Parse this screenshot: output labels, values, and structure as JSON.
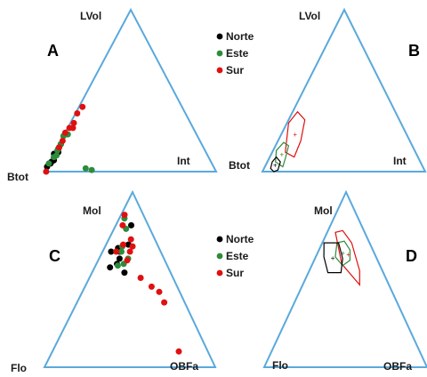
{
  "colors": {
    "triangle": "#5aa9dc",
    "norte": "#000000",
    "este": "#2e8b3a",
    "sur": "#e01010"
  },
  "panels": [
    {
      "id": "A",
      "label": "A",
      "vertices": {
        "top": "LVol",
        "left": "Btot",
        "right": "Int"
      },
      "legend": [
        "Norte",
        "Este",
        "Sur"
      ]
    },
    {
      "id": "B",
      "label": "B",
      "vertices": {
        "top": "LVol",
        "left": "Btot",
        "right": "Int"
      }
    },
    {
      "id": "C",
      "label": "C",
      "vertices": {
        "top": "Mol",
        "left": "Flo",
        "right": "OBFa"
      },
      "legend": [
        "Norte",
        "Este",
        "Sur"
      ]
    },
    {
      "id": "D",
      "label": "D",
      "vertices": {
        "top": "Mol",
        "left": "Flo",
        "right": "OBFa"
      }
    }
  ],
  "chart_data": {
    "type": "scatter",
    "diagram": "ternary",
    "series_names": [
      "Norte",
      "Este",
      "Sur"
    ],
    "panel_A": {
      "Norte": [
        [
          0.03,
          0.97
        ],
        [
          0.05,
          0.94
        ],
        [
          0.06,
          0.93
        ],
        [
          0.07,
          0.91
        ],
        [
          0.09,
          0.9
        ],
        [
          0.11,
          0.89
        ],
        [
          0.12,
          0.86
        ],
        [
          0.14,
          0.85
        ],
        [
          0.17,
          0.82
        ]
      ],
      "Este": [
        [
          0.05,
          0.95
        ],
        [
          0.09,
          0.9
        ],
        [
          0.1,
          0.88
        ],
        [
          0.13,
          0.86
        ],
        [
          0.15,
          0.84
        ],
        [
          0.17,
          0.82
        ],
        [
          0.22,
          0.78
        ],
        [
          0.23,
          0.75
        ],
        [
          0.02,
          0.75
        ],
        [
          0.01,
          0.72
        ]
      ],
      "Sur": [
        [
          0.0,
          0.99
        ],
        [
          0.15,
          0.84
        ],
        [
          0.19,
          0.8
        ],
        [
          0.24,
          0.76
        ],
        [
          0.27,
          0.72
        ],
        [
          0.27,
          0.7
        ],
        [
          0.3,
          0.68
        ],
        [
          0.36,
          0.63
        ],
        [
          0.4,
          0.58
        ]
      ]
    },
    "panel_C": {
      "Norte": [
        [
          0.81,
          0.1
        ],
        [
          0.7,
          0.17
        ],
        [
          0.68,
          0.24
        ],
        [
          0.66,
          0.24
        ],
        [
          0.66,
          0.29
        ],
        [
          0.62,
          0.26
        ],
        [
          0.59,
          0.29
        ],
        [
          0.57,
          0.34
        ],
        [
          0.54,
          0.27
        ]
      ],
      "Este": [
        [
          0.85,
          0.12
        ],
        [
          0.79,
          0.14
        ],
        [
          0.69,
          0.21
        ],
        [
          0.66,
          0.23
        ],
        [
          0.62,
          0.21
        ],
        [
          0.59,
          0.25
        ],
        [
          0.58,
          0.29
        ]
      ],
      "Sur": [
        [
          0.87,
          0.11
        ],
        [
          0.81,
          0.15
        ],
        [
          0.73,
          0.14
        ],
        [
          0.7,
          0.2
        ],
        [
          0.69,
          0.15
        ],
        [
          0.66,
          0.18
        ],
        [
          0.66,
          0.26
        ],
        [
          0.61,
          0.22
        ],
        [
          0.51,
          0.19
        ],
        [
          0.46,
          0.15
        ],
        [
          0.43,
          0.12
        ],
        [
          0.37,
          0.12
        ],
        [
          0.09,
          0.17
        ]
      ]
    },
    "panel_B_hexagons": {
      "Norte": [
        [
          0.06,
          0.91
        ],
        [
          0.09,
          0.87
        ],
        [
          0.06,
          0.86
        ],
        [
          0.01,
          0.9
        ],
        [
          0.0,
          0.93
        ],
        [
          0.02,
          0.94
        ]
      ],
      "Este": [
        [
          0.13,
          0.85
        ],
        [
          0.18,
          0.78
        ],
        [
          0.16,
          0.76
        ],
        [
          0.08,
          0.82
        ],
        [
          0.03,
          0.86
        ],
        [
          0.06,
          0.89
        ]
      ],
      "Sur": [
        [
          0.3,
          0.69
        ],
        [
          0.37,
          0.6
        ],
        [
          0.32,
          0.58
        ],
        [
          0.19,
          0.67
        ],
        [
          0.09,
          0.76
        ],
        [
          0.12,
          0.8
        ]
      ]
    },
    "panel_D_hexagons": {
      "Norte": [
        [
          0.71,
          0.28
        ],
        [
          0.71,
          0.19
        ],
        [
          0.62,
          0.21
        ],
        [
          0.54,
          0.26
        ],
        [
          0.54,
          0.34
        ],
        [
          0.63,
          0.32
        ]
      ],
      "Este": [
        [
          0.71,
          0.2
        ],
        [
          0.72,
          0.15
        ],
        [
          0.67,
          0.14
        ],
        [
          0.61,
          0.17
        ],
        [
          0.58,
          0.23
        ],
        [
          0.63,
          0.25
        ]
      ],
      "Sur": [
        [
          0.77,
          0.18
        ],
        [
          0.78,
          0.13
        ],
        [
          0.71,
          0.11
        ],
        [
          0.55,
          0.14
        ],
        [
          0.47,
          0.18
        ],
        [
          0.59,
          0.23
        ]
      ]
    }
  }
}
